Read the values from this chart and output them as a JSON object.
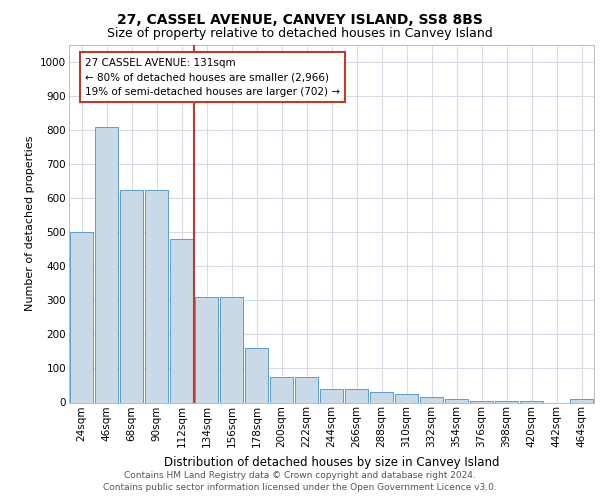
{
  "title1": "27, CASSEL AVENUE, CANVEY ISLAND, SS8 8BS",
  "title2": "Size of property relative to detached houses in Canvey Island",
  "xlabel": "Distribution of detached houses by size in Canvey Island",
  "ylabel": "Number of detached properties",
  "footer1": "Contains HM Land Registry data © Crown copyright and database right 2024.",
  "footer2": "Contains public sector information licensed under the Open Government Licence v3.0.",
  "annotation_title": "27 CASSEL AVENUE: 131sqm",
  "annotation_line1": "← 80% of detached houses are smaller (2,966)",
  "annotation_line2": "19% of semi-detached houses are larger (702) →",
  "bar_categories": [
    "24sqm",
    "46sqm",
    "68sqm",
    "90sqm",
    "112sqm",
    "134sqm",
    "156sqm",
    "178sqm",
    "200sqm",
    "222sqm",
    "244sqm",
    "266sqm",
    "288sqm",
    "310sqm",
    "332sqm",
    "354sqm",
    "376sqm",
    "398sqm",
    "420sqm",
    "442sqm",
    "464sqm"
  ],
  "bar_values": [
    500,
    810,
    625,
    625,
    480,
    310,
    310,
    160,
    75,
    75,
    40,
    40,
    30,
    25,
    15,
    10,
    5,
    5,
    3,
    0,
    10
  ],
  "bar_color": "#c9d9e8",
  "bar_edge_color": "#5b9bd5",
  "vline_color": "#c0392b",
  "annotation_box_color": "#c0392b",
  "ylim": [
    0,
    1050
  ],
  "yticks": [
    0,
    100,
    200,
    300,
    400,
    500,
    600,
    700,
    800,
    900,
    1000
  ],
  "bg_color": "#ffffff",
  "grid_color": "#d5dce8",
  "title1_fontsize": 10,
  "title2_fontsize": 9,
  "ylabel_fontsize": 8,
  "xlabel_fontsize": 8.5,
  "tick_fontsize": 7.5,
  "footer_fontsize": 6.5
}
